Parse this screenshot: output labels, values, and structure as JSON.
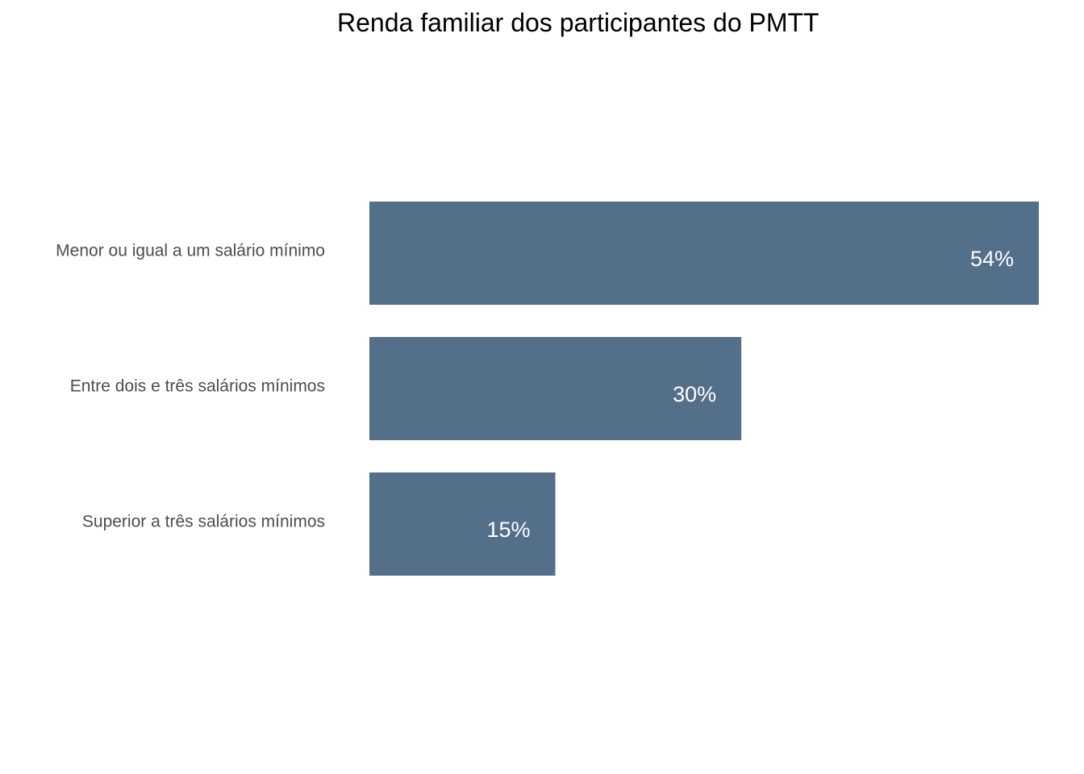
{
  "chart_data": {
    "type": "bar",
    "orientation": "horizontal",
    "title": "Renda familiar dos participantes do PMTT",
    "xlabel": "",
    "ylabel": "",
    "categories": [
      "Menor ou igual a um salário mínimo",
      "Entre dois e três salários mínimos",
      "Superior a três salários mínimos"
    ],
    "values": [
      54,
      30,
      15
    ],
    "value_labels": [
      "54%",
      "30%",
      "15%"
    ],
    "bar_color": "#546F8A",
    "value_label_color": "#ffffff",
    "grid": false,
    "legend": "none",
    "xlim": [
      0,
      54
    ]
  }
}
